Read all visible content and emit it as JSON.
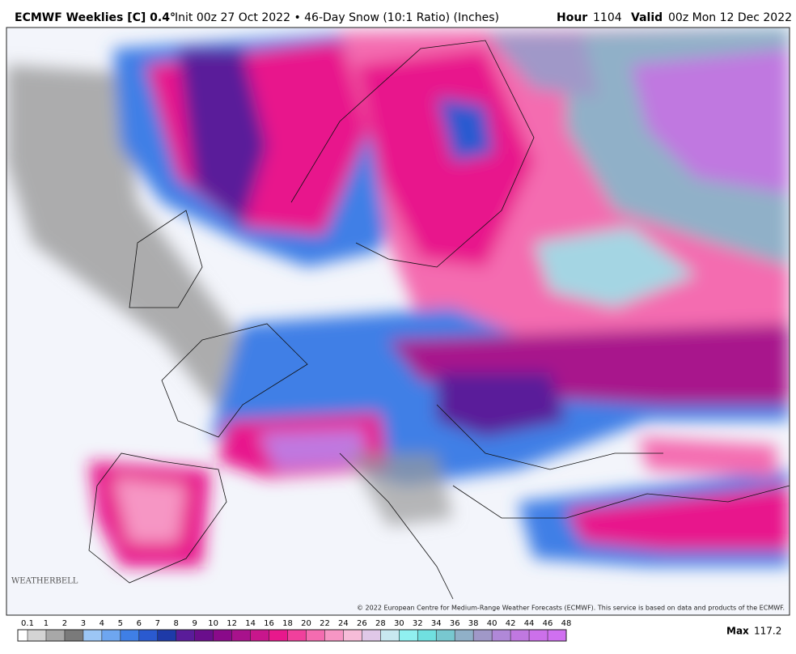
{
  "header": {
    "model": "ECMWF Weeklies [C] 0.4°",
    "run": "Init 00z 27 Oct 2022 • 46-Day Snow (10:1 Ratio) (Inches)",
    "hour_label": "Hour",
    "hour": 1104,
    "valid_label": "Valid",
    "valid": "00z Mon 12 Dec 2022"
  },
  "map": {
    "logo": "WEATHERBELL",
    "copyright": "© 2022 European Centre for Medium-Range Weather Forecasts (ECMWF). This service is based on data and products of the ECMWF."
  },
  "colorbar": {
    "ticks": [
      0.1,
      1,
      2,
      3,
      4,
      5,
      6,
      7,
      8,
      9,
      10,
      12,
      14,
      16,
      18,
      20,
      22,
      24,
      26,
      28,
      30,
      32,
      34,
      36,
      38,
      40,
      42,
      44,
      46,
      48
    ],
    "colors": [
      "#ffffff",
      "#d4d4d4",
      "#a8a8a8",
      "#7a7a7a",
      "#9cc6f5",
      "#6ea6f0",
      "#3f7fe6",
      "#2a5ad0",
      "#1e3aa8",
      "#5a1c9a",
      "#6a0e8c",
      "#8a0a8a",
      "#a8128c",
      "#c8168c",
      "#e8188c",
      "#f0409c",
      "#f46cb0",
      "#f696c4",
      "#f6bcd8",
      "#e0c8e8",
      "#c8e8f0",
      "#90f0f0",
      "#70e0e0",
      "#78c8d0",
      "#90b0c8",
      "#a098c8",
      "#b088d8",
      "#c078e0",
      "#cc70ea",
      "#d070f0"
    ],
    "max_label": "Max",
    "max": 117.2
  }
}
